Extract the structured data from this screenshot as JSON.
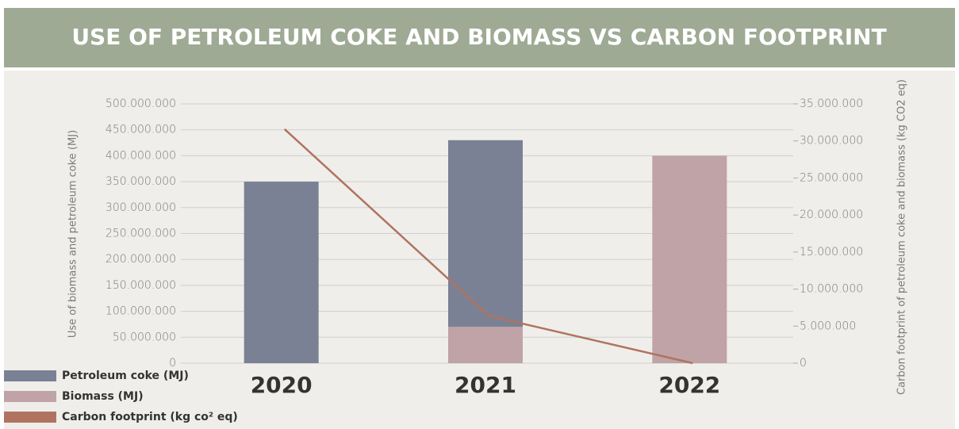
{
  "chart_data": {
    "type": "bar",
    "title": "USE OF PETROLEUM COKE AND BIOMASS VS CARBON FOOTPRINT",
    "y_label": "Use of biomass and petroleum coke (MJ)",
    "y2_label": "Carbon footprint of petroleum coke and biomass (kg CO2 eq)",
    "categories": [
      "2020",
      "2021",
      "2022"
    ],
    "stacked": true,
    "series": [
      {
        "name": "Petroleum coke (MJ)",
        "type": "bar",
        "color": "#7a8194",
        "values": [
          350000000,
          360000000,
          0
        ]
      },
      {
        "name": "Biomass (MJ)",
        "type": "bar",
        "color": "#c0a3a6",
        "values": [
          0,
          70000000,
          400000000
        ]
      },
      {
        "name": "Carbon footprint (kg co² eq)",
        "type": "line",
        "axis": "y2",
        "color": "#b07360",
        "values": [
          31600000,
          6400000,
          0
        ]
      }
    ],
    "ylim": [
      0,
      500000000
    ],
    "yticks": [
      0,
      {
        "value": 50000000,
        "label": "50.000.000"
      },
      {
        "value": 100000000,
        "label": "100.000.000"
      },
      {
        "value": 150000000,
        "label": "150.000.000"
      },
      {
        "value": 200000000,
        "label": "200.000.000"
      },
      {
        "value": 250000000,
        "label": "250.000.000"
      },
      {
        "value": 300000000,
        "label": "300.000.000"
      },
      {
        "value": 350000000,
        "label": "350.000.000"
      },
      {
        "value": 400000000,
        "label": "400.000.000"
      },
      {
        "value": 450000000,
        "label": "450.000.000"
      },
      {
        "value": 500000000,
        "label": "500.000.000"
      }
    ],
    "y2lim": [
      0,
      35000000
    ],
    "y2ticks": [
      0,
      {
        "value": 5000000,
        "label": "5.000.000"
      },
      {
        "value": 10000000,
        "label": "10.000.000"
      },
      {
        "value": 15000000,
        "label": "15.000.000"
      },
      {
        "value": 20000000,
        "label": "20.000.000"
      },
      {
        "value": 25000000,
        "label": "25.000.000"
      },
      {
        "value": 30000000,
        "label": "30.000.000"
      },
      {
        "value": 35000000,
        "label": "35.000.000"
      }
    ],
    "grid": true,
    "legend": "bottom-left"
  }
}
